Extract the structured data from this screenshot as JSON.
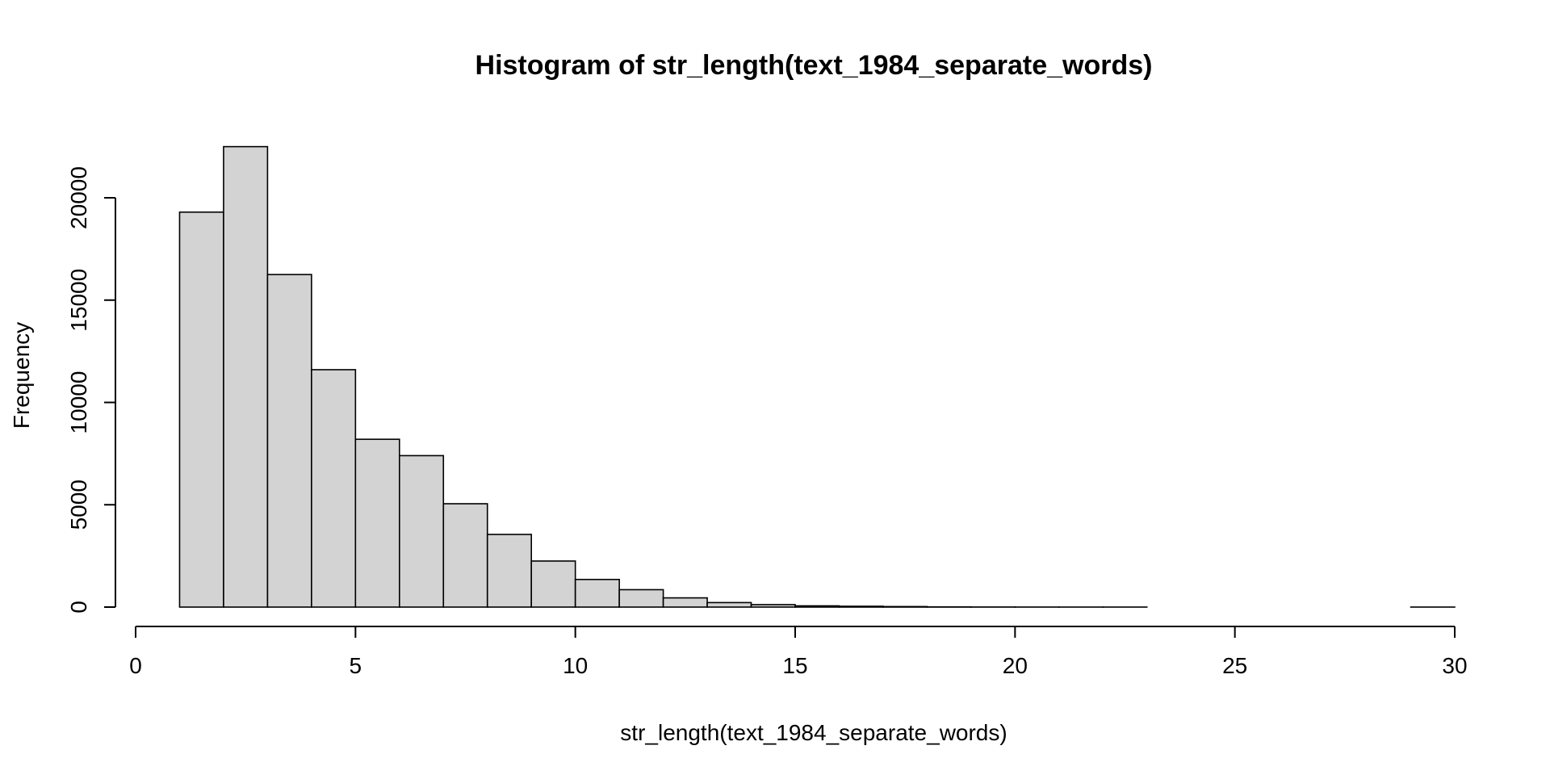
{
  "chart_data": {
    "type": "bar",
    "title": "Histogram of str_length(text_1984_separate_words)",
    "xlabel": "str_length(text_1984_separate_words)",
    "ylabel": "Frequency",
    "xlim": [
      0,
      30
    ],
    "ylim": [
      0,
      20000
    ],
    "x_ticks": [
      0,
      5,
      10,
      15,
      20,
      25,
      30
    ],
    "y_ticks": [
      0,
      5000,
      10000,
      15000,
      20000
    ],
    "bins": [
      {
        "start": 1,
        "end": 2,
        "count": 19300
      },
      {
        "start": 2,
        "end": 3,
        "count": 22500
      },
      {
        "start": 3,
        "end": 4,
        "count": 16250
      },
      {
        "start": 4,
        "end": 5,
        "count": 11600
      },
      {
        "start": 5,
        "end": 6,
        "count": 8200
      },
      {
        "start": 6,
        "end": 7,
        "count": 7400
      },
      {
        "start": 7,
        "end": 8,
        "count": 5050
      },
      {
        "start": 8,
        "end": 9,
        "count": 3550
      },
      {
        "start": 9,
        "end": 10,
        "count": 2250
      },
      {
        "start": 10,
        "end": 11,
        "count": 1350
      },
      {
        "start": 11,
        "end": 12,
        "count": 850
      },
      {
        "start": 12,
        "end": 13,
        "count": 450
      },
      {
        "start": 13,
        "end": 14,
        "count": 220
      },
      {
        "start": 14,
        "end": 15,
        "count": 120
      },
      {
        "start": 15,
        "end": 16,
        "count": 60
      },
      {
        "start": 16,
        "end": 17,
        "count": 40
      },
      {
        "start": 17,
        "end": 18,
        "count": 25
      },
      {
        "start": 18,
        "end": 19,
        "count": 8
      },
      {
        "start": 19,
        "end": 20,
        "count": 4
      },
      {
        "start": 20,
        "end": 21,
        "count": 2
      },
      {
        "start": 21,
        "end": 22,
        "count": 1
      },
      {
        "start": 22,
        "end": 23,
        "count": 1
      },
      {
        "start": 23,
        "end": 24,
        "count": 0
      },
      {
        "start": 24,
        "end": 25,
        "count": 0
      },
      {
        "start": 25,
        "end": 26,
        "count": 0
      },
      {
        "start": 26,
        "end": 27,
        "count": 0
      },
      {
        "start": 27,
        "end": 28,
        "count": 0
      },
      {
        "start": 28,
        "end": 29,
        "count": 0
      },
      {
        "start": 29,
        "end": 30,
        "count": 1
      }
    ],
    "bar_fill": "#d3d3d3",
    "bar_stroke": "#000000",
    "grid": false,
    "legend": "none"
  }
}
